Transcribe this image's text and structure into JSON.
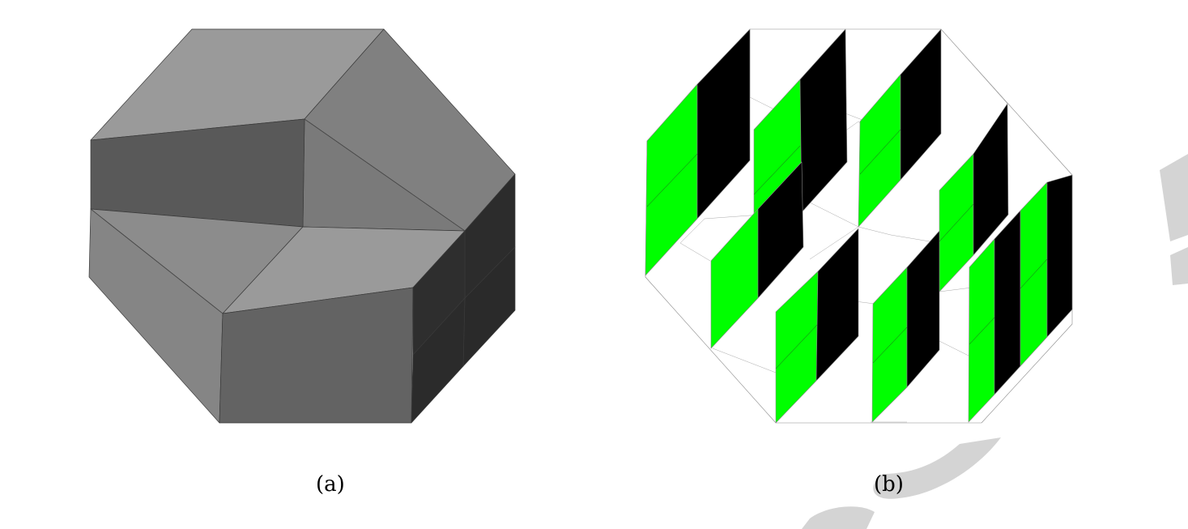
{
  "panels": [
    {
      "id": "a",
      "caption": "(a)",
      "description_colors": {
        "light": "#9a9a9a",
        "mid": "#808080",
        "darkgray": "#595959",
        "dark": "#2c2c2c"
      }
    },
    {
      "id": "b",
      "caption": "(b)",
      "description_colors": {
        "green": "#00ff00",
        "black": "#000000",
        "white": "#ffffff",
        "edge": "#9a9a9a"
      }
    }
  ],
  "watermark": {
    "color": "#d4d4d4"
  }
}
